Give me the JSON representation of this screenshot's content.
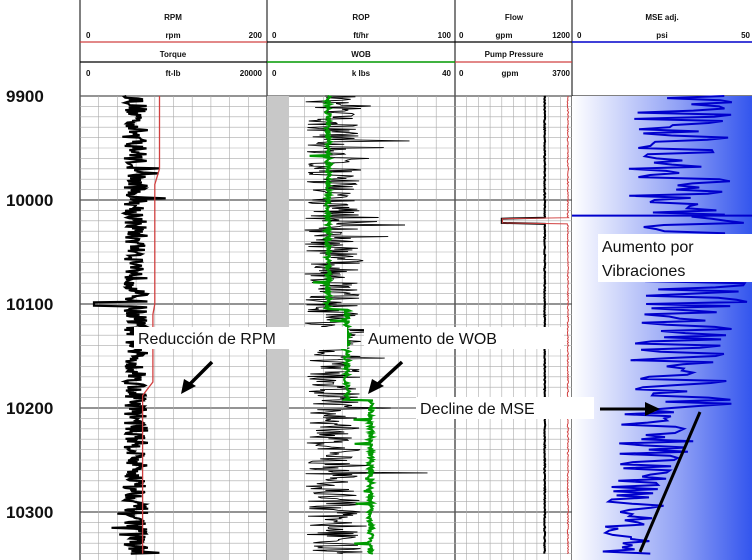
{
  "chart_data": {
    "type": "line",
    "y_axis": {
      "label": "",
      "ticks": [
        9900,
        10000,
        10100,
        10200,
        10300
      ],
      "range": [
        9900,
        10340
      ]
    },
    "tracks": [
      {
        "curves": [
          {
            "name": "RPM",
            "unit": "rpm",
            "min": 0,
            "max": 200,
            "color": "#d04040"
          },
          {
            "name": "Torque",
            "unit": "ft-lb",
            "min": 0,
            "max": 20000,
            "color": "#000000"
          }
        ],
        "series": {
          "rpm": {
            "depth": [
              9900,
              9970,
              9985,
              10100,
              10110,
              10175,
              10188,
              10340
            ],
            "value": [
              85,
              85,
              80,
              80,
              78,
              78,
              67,
              67
            ]
          },
          "torque_mean": 6000
        }
      },
      {
        "curves": [
          {
            "name": "ROP",
            "unit": "ft/hr",
            "min": 0,
            "max": 100,
            "color": "#000000"
          },
          {
            "name": "WOB",
            "unit": "k lbs",
            "min": 0,
            "max": 40,
            "color": "#009900"
          }
        ],
        "series": {
          "wob": {
            "depth": [
              9900,
              10098,
              10105,
              10186,
              10192,
              10340
            ],
            "value": [
              13,
              13,
              17,
              17,
              22,
              22
            ]
          },
          "rop_mean": 35
        }
      },
      {
        "curves": [
          {
            "name": "Flow",
            "unit": "gpm",
            "min": 0,
            "max": 1200,
            "color": "#000000"
          },
          {
            "name": "Pump Pressure",
            "unit": "gpm",
            "min": 0,
            "max": 3700,
            "color": "#d04040"
          }
        ],
        "series": {
          "flow_mean": 920,
          "flow_spike_depth": 10020
        }
      },
      {
        "curves": [
          {
            "name": "MSE adj.",
            "unit": "psi",
            "min": 0,
            "max": 50,
            "color": "#0000cc"
          }
        ],
        "series": {
          "note": "high amplitude blue trace, increase between 10000 and 10100, decline after 10200"
        }
      }
    ],
    "annotations": [
      "Reducción de RPM",
      "Aumento de WOB",
      "Decline de MSE",
      "Aumento por",
      "Vibraciones"
    ],
    "grid": true
  },
  "header": {
    "track1": {
      "top_title": "RPM",
      "top_unit": "rpm",
      "top_min": "0",
      "top_max": "200",
      "bottom_title": "Torque",
      "bottom_unit": "ft-lb",
      "bottom_min": "0",
      "bottom_max": "20000"
    },
    "track2": {
      "top_title": "ROP",
      "top_unit": "ft/hr",
      "top_min": "0",
      "top_max": "100",
      "bottom_title": "WOB",
      "bottom_unit": "k lbs",
      "bottom_min": "0",
      "bottom_max": "40"
    },
    "track3": {
      "top_title": "Flow",
      "top_unit": "gpm",
      "top_min": "0",
      "top_max": "1200",
      "bottom_title": "Pump Pressure",
      "bottom_unit": "gpm",
      "bottom_min": "0",
      "bottom_max": "3700"
    },
    "track4": {
      "top_title": "MSE adj.",
      "top_unit": "psi",
      "top_min": "0",
      "top_max": "50"
    }
  },
  "depth_labels": [
    "9900",
    "10000",
    "10100",
    "10200",
    "10300"
  ],
  "annotations": {
    "rpm": "Reducción de RPM",
    "wob": "Aumento de WOB",
    "mse_decline": "Decline de MSE",
    "vib_line1": "Aumento por",
    "vib_line2": "Vibraciones"
  },
  "colors": {
    "rpm": "#d04040",
    "torque": "#000000",
    "wob": "#009900",
    "rop": "#000000",
    "mse": "#0000cc",
    "mse_fill": "#3355ee",
    "flow": "#000000",
    "pressure": "#d04040",
    "rop_fill": "#c8c8c8"
  }
}
